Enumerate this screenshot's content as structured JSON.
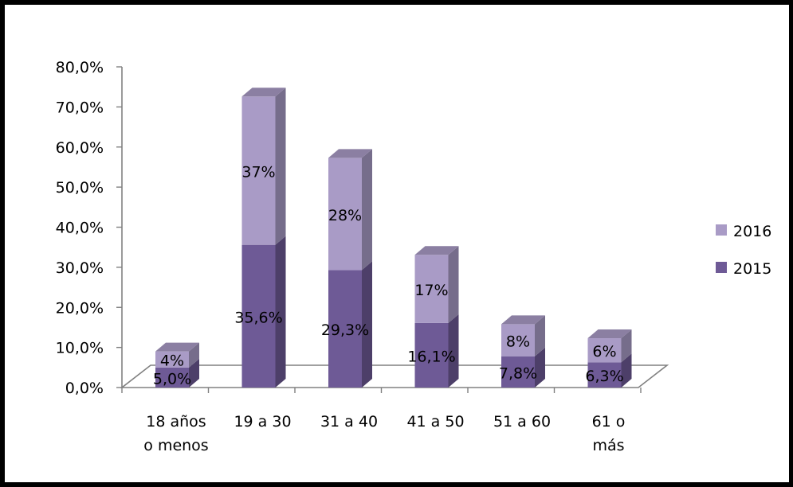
{
  "chart_data": {
    "type": "bar",
    "stacked": true,
    "three_d": true,
    "categories": [
      [
        "18 años",
        "o menos"
      ],
      [
        "19 a 30"
      ],
      [
        "31 a 40"
      ],
      [
        "41 a 50"
      ],
      [
        "51 a 60"
      ],
      [
        "61 o",
        "más"
      ]
    ],
    "series": [
      {
        "name": "2015",
        "values": [
          5.0,
          35.6,
          29.3,
          16.1,
          7.8,
          6.3
        ],
        "labels": [
          "5,0%",
          "35,6%",
          "29,3%",
          "16,1%",
          "7,8%",
          "6,3%"
        ],
        "color": "#6e5a96"
      },
      {
        "name": "2016",
        "values": [
          4,
          37,
          28,
          17,
          8,
          6
        ],
        "labels": [
          "4%",
          "37%",
          "28%",
          "17%",
          "8%",
          "6%"
        ],
        "color": "#a99bc6"
      }
    ],
    "yticks": [
      "0,0%",
      "10,0%",
      "20,0%",
      "30,0%",
      "40,0%",
      "50,0%",
      "60,0%",
      "70,0%",
      "80,0%"
    ],
    "ylim": [
      0,
      80
    ],
    "legend_position": "right",
    "legend_order": [
      "2016",
      "2015"
    ]
  }
}
